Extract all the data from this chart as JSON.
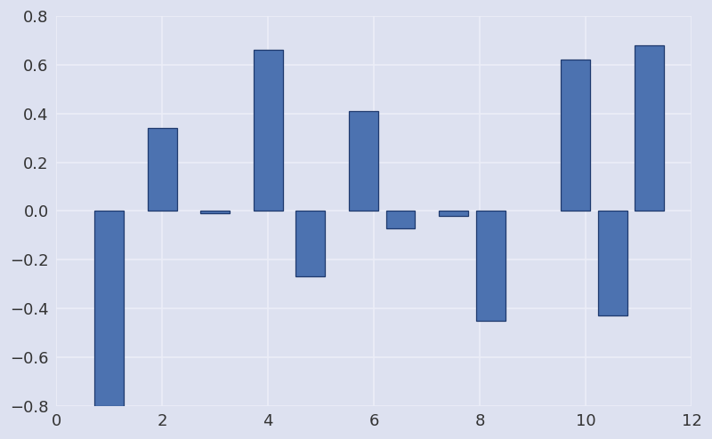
{
  "bar_positions": [
    1.0,
    2.0,
    3.0,
    4.0,
    4.8,
    5.8,
    6.5,
    7.5,
    8.2,
    9.8,
    10.5,
    11.2
  ],
  "bar_values": [
    -0.8,
    0.34,
    -0.01,
    0.66,
    -0.27,
    0.41,
    -0.07,
    -0.02,
    -0.45,
    0.62,
    -0.43,
    0.68
  ],
  "bar_width": 0.55,
  "bar_color": "#4c72b0",
  "bar_edgecolor": "#1f3a6e",
  "xlim": [
    0,
    12
  ],
  "ylim": [
    -0.8,
    0.8
  ],
  "xticks": [
    0,
    2,
    4,
    6,
    8,
    10,
    12
  ],
  "yticks": [
    -0.8,
    -0.6,
    -0.4,
    -0.2,
    0.0,
    0.2,
    0.4,
    0.6,
    0.8
  ],
  "background_color": "#dde1f0",
  "axes_background_color": "#dde1f0",
  "grid_color": "#eceef8",
  "tick_labelsize": 13
}
